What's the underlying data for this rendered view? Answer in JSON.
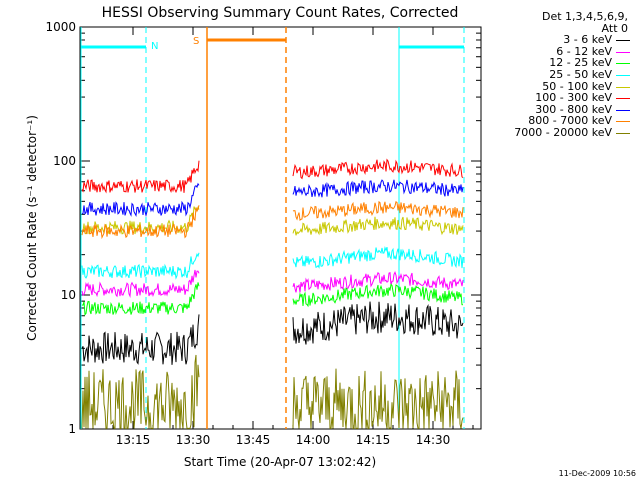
{
  "chart_data": {
    "type": "line",
    "title": "HESSI Observing Summary Count Rates, Corrected",
    "xlabel": "Start Time (20-Apr-07 13:02:42)",
    "ylabel": "Corrected Count Rate (s⁻¹ detector⁻¹)",
    "ylim": [
      1,
      1000
    ],
    "yscale": "log",
    "x_tick_labels": [
      "13:15",
      "13:30",
      "13:45",
      "14:00",
      "14:15",
      "14:30"
    ],
    "y_tick_labels": [
      "1",
      "10",
      "100",
      "1000"
    ],
    "legend_header": [
      "Det 1,3,4,5,6,9,",
      "Att 0"
    ],
    "series": [
      {
        "name": "3 - 6 keV",
        "color": "#000000",
        "before": 4.0,
        "after": 5.5,
        "hump": 1.25
      },
      {
        "name": "6 - 12 keV",
        "color": "#ff00ff",
        "before": 11.0,
        "after": 11.5,
        "hump": 1.15
      },
      {
        "name": "12 - 25 keV",
        "color": "#00ff00",
        "before": 8.0,
        "after": 9.0,
        "hump": 1.2
      },
      {
        "name": "25 - 50 keV",
        "color": "#00ffff",
        "before": 15.0,
        "after": 17.0,
        "hump": 1.2
      },
      {
        "name": "50 - 100 keV",
        "color": "#c8c800",
        "before": 32.0,
        "after": 30.0,
        "hump": 1.15
      },
      {
        "name": "100 - 300 keV",
        "color": "#ff0000",
        "before": 65.0,
        "after": 82.0,
        "hump": 1.12
      },
      {
        "name": "300 - 800 keV",
        "color": "#0000ff",
        "before": 44.0,
        "after": 58.0,
        "hump": 1.12
      },
      {
        "name": "800 - 7000 keV",
        "color": "#ff8000",
        "before": 30.0,
        "after": 40.0,
        "hump": 1.12
      },
      {
        "name": "7000 - 20000 keV",
        "color": "#808000",
        "before": 1.5,
        "after": 1.5,
        "hump": 1.0
      }
    ],
    "flags": [
      {
        "label": "N",
        "color": "#00ffff"
      },
      {
        "label": "S",
        "color": "#ff8000"
      }
    ]
  },
  "footer": {
    "timestamp": "11-Dec-2009 10:56"
  }
}
